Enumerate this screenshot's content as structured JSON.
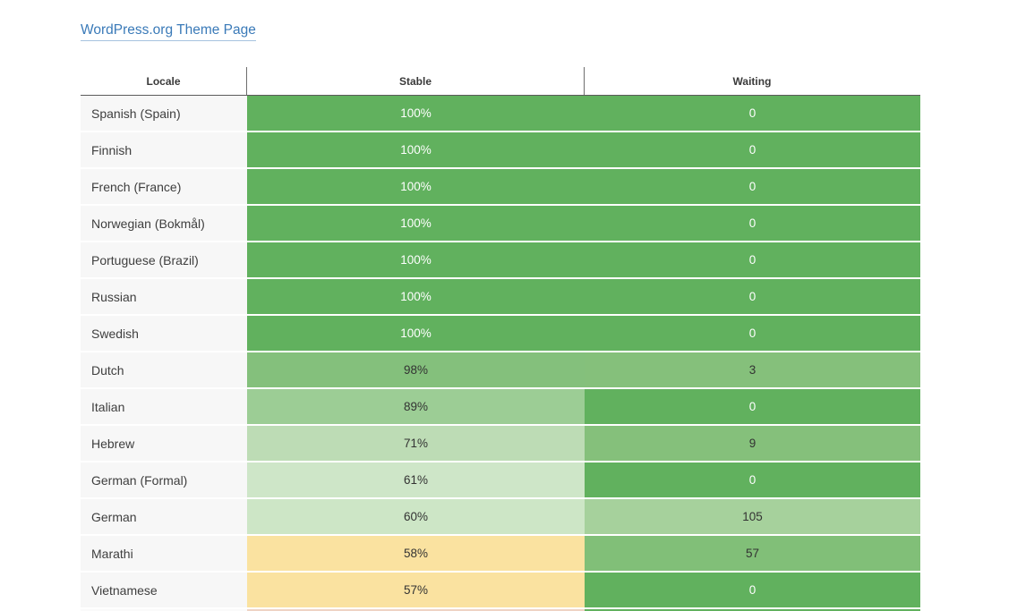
{
  "title_link": {
    "text": "WordPress.org Theme Page"
  },
  "colors": {
    "link": "#3a7ab8",
    "link_underline": "rgba(58,122,184,0.45)",
    "header_border": "#5b5b5b",
    "header_text": "#3a3a3a",
    "locale_cell_bg": "#f7f7f7",
    "locale_text": "#3e3e3e",
    "dark_value_text": "#333333",
    "white_value_text": "#ffffff",
    "green_full": "#61b15e",
    "yellow_low": "#fae2a0"
  },
  "table": {
    "headers": [
      "Locale",
      "Stable",
      "Waiting"
    ],
    "rows": [
      {
        "locale": "Spanish (Spain)",
        "stable": "100%",
        "waiting": "0",
        "stable_bg": "#61b15e",
        "stable_fg": "#ffffff",
        "waiting_bg": "#61b15e",
        "waiting_fg": "#ffffff"
      },
      {
        "locale": "Finnish",
        "stable": "100%",
        "waiting": "0",
        "stable_bg": "#61b15e",
        "stable_fg": "#ffffff",
        "waiting_bg": "#61b15e",
        "waiting_fg": "#ffffff"
      },
      {
        "locale": "French (France)",
        "stable": "100%",
        "waiting": "0",
        "stable_bg": "#61b15e",
        "stable_fg": "#ffffff",
        "waiting_bg": "#61b15e",
        "waiting_fg": "#ffffff"
      },
      {
        "locale": "Norwegian (Bokmål)",
        "stable": "100%",
        "waiting": "0",
        "stable_bg": "#61b15e",
        "stable_fg": "#ffffff",
        "waiting_bg": "#61b15e",
        "waiting_fg": "#ffffff"
      },
      {
        "locale": "Portuguese (Brazil)",
        "stable": "100%",
        "waiting": "0",
        "stable_bg": "#61b15e",
        "stable_fg": "#ffffff",
        "waiting_bg": "#61b15e",
        "waiting_fg": "#ffffff"
      },
      {
        "locale": "Russian",
        "stable": "100%",
        "waiting": "0",
        "stable_bg": "#61b15e",
        "stable_fg": "#ffffff",
        "waiting_bg": "#61b15e",
        "waiting_fg": "#ffffff"
      },
      {
        "locale": "Swedish",
        "stable": "100%",
        "waiting": "0",
        "stable_bg": "#61b15e",
        "stable_fg": "#ffffff",
        "waiting_bg": "#61b15e",
        "waiting_fg": "#ffffff"
      },
      {
        "locale": "Dutch",
        "stable": "98%",
        "waiting": "3",
        "stable_bg": "#84c07c",
        "stable_fg": "#333333",
        "waiting_bg": "#85c07b",
        "waiting_fg": "#333333"
      },
      {
        "locale": "Italian",
        "stable": "89%",
        "waiting": "0",
        "stable_bg": "#9ccd95",
        "stable_fg": "#333333",
        "waiting_bg": "#61b15e",
        "waiting_fg": "#ffffff"
      },
      {
        "locale": "Hebrew",
        "stable": "71%",
        "waiting": "9",
        "stable_bg": "#bddcb5",
        "stable_fg": "#333333",
        "waiting_bg": "#85c07b",
        "waiting_fg": "#333333"
      },
      {
        "locale": "German (Formal)",
        "stable": "61%",
        "waiting": "0",
        "stable_bg": "#cee6c8",
        "stable_fg": "#333333",
        "waiting_bg": "#61b15e",
        "waiting_fg": "#ffffff"
      },
      {
        "locale": "German",
        "stable": "60%",
        "waiting": "105",
        "stable_bg": "#cde6c6",
        "stable_fg": "#333333",
        "waiting_bg": "#a6d19c",
        "waiting_fg": "#333333"
      },
      {
        "locale": "Marathi",
        "stable": "58%",
        "waiting": "57",
        "stable_bg": "#fae2a0",
        "stable_fg": "#333333",
        "waiting_bg": "#81bf78",
        "waiting_fg": "#333333"
      },
      {
        "locale": "Vietnamese",
        "stable": "57%",
        "waiting": "0",
        "stable_bg": "#fae2a0",
        "stable_fg": "#333333",
        "waiting_bg": "#61b15e",
        "waiting_fg": "#ffffff"
      }
    ],
    "cutoff_row": {
      "locale_bg": "#fafafa",
      "stable_bg": "#eed3c4",
      "waiting_bg": "#61b15e"
    }
  }
}
